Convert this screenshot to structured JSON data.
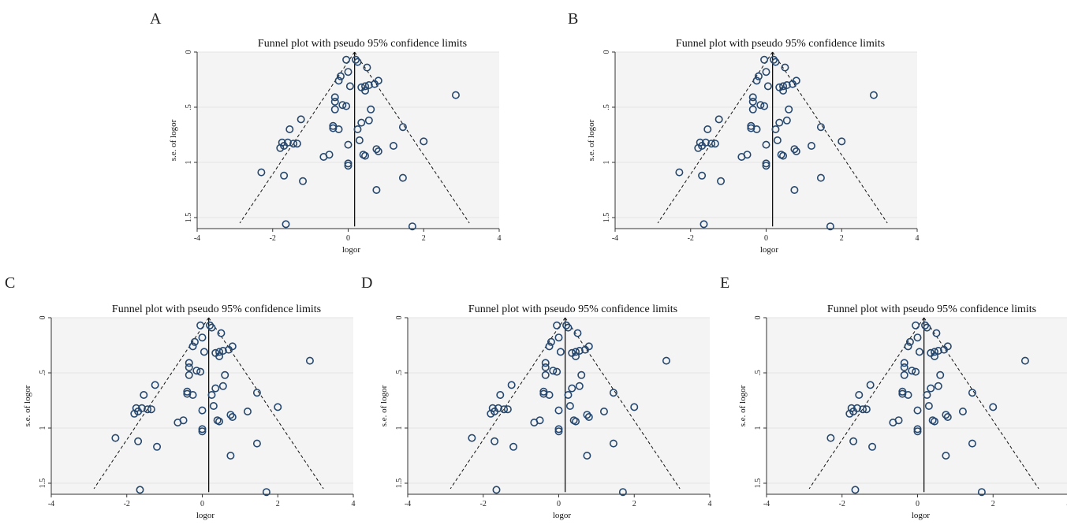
{
  "panels": [
    {
      "letter": "A"
    },
    {
      "letter": "B"
    },
    {
      "letter": "C"
    },
    {
      "letter": "D"
    },
    {
      "letter": "E"
    }
  ],
  "colors": {
    "plot_background": "#f4f4f4",
    "marker_stroke": "#25476e",
    "line": "#111111",
    "gridline": "#e4e4e4"
  },
  "chart_data": [
    {
      "type": "scatter",
      "title": "Funnel plot with pseudo 95% confidence limits",
      "xlabel": "logor",
      "ylabel": "s.e. of logor",
      "xlim": [
        -4,
        4
      ],
      "ylim": [
        1.6,
        0
      ],
      "y_inverted": true,
      "xticks": [
        "-4",
        "-2",
        "0",
        "2",
        "4"
      ],
      "yticks": [
        "0",
        ".5",
        "1",
        "1.5"
      ],
      "grid": true,
      "pooled_estimate": 0.17,
      "pseudo_ci_limits": [
        [
          0.17,
          0
        ],
        [
          -2.87,
          1.55
        ],
        [
          3.21,
          1.55
        ]
      ],
      "points": [
        [
          -0.05,
          0.07
        ],
        [
          0.2,
          0.07
        ],
        [
          0.25,
          0.09
        ],
        [
          0.5,
          0.14
        ],
        [
          0.0,
          0.18
        ],
        [
          -0.2,
          0.22
        ],
        [
          -0.25,
          0.26
        ],
        [
          0.8,
          0.26
        ],
        [
          0.7,
          0.29
        ],
        [
          0.55,
          0.3
        ],
        [
          0.45,
          0.31
        ],
        [
          0.05,
          0.31
        ],
        [
          0.35,
          0.32
        ],
        [
          0.45,
          0.35
        ],
        [
          2.85,
          0.39
        ],
        [
          -0.35,
          0.41
        ],
        [
          -0.35,
          0.45
        ],
        [
          -0.15,
          0.48
        ],
        [
          -0.05,
          0.49
        ],
        [
          -0.35,
          0.52
        ],
        [
          0.6,
          0.52
        ],
        [
          -1.25,
          0.61
        ],
        [
          0.55,
          0.62
        ],
        [
          0.35,
          0.64
        ],
        [
          -0.4,
          0.67
        ],
        [
          -0.4,
          0.69
        ],
        [
          -1.55,
          0.7
        ],
        [
          0.25,
          0.7
        ],
        [
          -0.25,
          0.7
        ],
        [
          1.45,
          0.68
        ],
        [
          0.3,
          0.8
        ],
        [
          2.0,
          0.81
        ],
        [
          -1.75,
          0.82
        ],
        [
          -1.6,
          0.82
        ],
        [
          -1.45,
          0.83
        ],
        [
          -1.35,
          0.83
        ],
        [
          -1.7,
          0.85
        ],
        [
          -1.8,
          0.87
        ],
        [
          1.2,
          0.85
        ],
        [
          0.0,
          0.84
        ],
        [
          0.75,
          0.88
        ],
        [
          0.8,
          0.9
        ],
        [
          -0.5,
          0.93
        ],
        [
          0.4,
          0.93
        ],
        [
          0.45,
          0.94
        ],
        [
          -0.65,
          0.95
        ],
        [
          0.0,
          1.01
        ],
        [
          0.0,
          1.03
        ],
        [
          -2.3,
          1.09
        ],
        [
          -1.7,
          1.12
        ],
        [
          1.45,
          1.14
        ],
        [
          -1.2,
          1.17
        ],
        [
          0.75,
          1.25
        ],
        [
          -1.65,
          1.56
        ],
        [
          1.7,
          1.58
        ]
      ]
    },
    {
      "type": "scatter",
      "title": "Funnel plot with pseudo 95% confidence limits",
      "xlabel": "logor",
      "ylabel": "s.e. of logor",
      "xlim": [
        -4,
        4
      ],
      "ylim": [
        1.6,
        0
      ],
      "y_inverted": true,
      "xticks": [
        "-4",
        "-2",
        "0",
        "2",
        "4"
      ],
      "yticks": [
        "0",
        ".5",
        "1",
        "1.5"
      ],
      "grid": true,
      "pooled_estimate": 0.17,
      "pseudo_ci_limits": [
        [
          0.17,
          0
        ],
        [
          -2.87,
          1.55
        ],
        [
          3.21,
          1.55
        ]
      ],
      "points": [
        [
          -0.05,
          0.07
        ],
        [
          0.2,
          0.07
        ],
        [
          0.25,
          0.09
        ],
        [
          0.5,
          0.14
        ],
        [
          0.0,
          0.18
        ],
        [
          -0.2,
          0.22
        ],
        [
          -0.25,
          0.26
        ],
        [
          0.8,
          0.26
        ],
        [
          0.7,
          0.29
        ],
        [
          0.55,
          0.3
        ],
        [
          0.45,
          0.31
        ],
        [
          0.05,
          0.31
        ],
        [
          0.35,
          0.32
        ],
        [
          0.45,
          0.35
        ],
        [
          2.85,
          0.39
        ],
        [
          -0.35,
          0.41
        ],
        [
          -0.35,
          0.45
        ],
        [
          -0.15,
          0.48
        ],
        [
          -0.05,
          0.49
        ],
        [
          -0.35,
          0.52
        ],
        [
          0.6,
          0.52
        ],
        [
          -1.25,
          0.61
        ],
        [
          0.55,
          0.62
        ],
        [
          0.35,
          0.64
        ],
        [
          -0.4,
          0.67
        ],
        [
          -0.4,
          0.69
        ],
        [
          -1.55,
          0.7
        ],
        [
          0.25,
          0.7
        ],
        [
          -0.25,
          0.7
        ],
        [
          1.45,
          0.68
        ],
        [
          0.3,
          0.8
        ],
        [
          2.0,
          0.81
        ],
        [
          -1.75,
          0.82
        ],
        [
          -1.6,
          0.82
        ],
        [
          -1.45,
          0.83
        ],
        [
          -1.35,
          0.83
        ],
        [
          -1.7,
          0.85
        ],
        [
          -1.8,
          0.87
        ],
        [
          1.2,
          0.85
        ],
        [
          0.0,
          0.84
        ],
        [
          0.75,
          0.88
        ],
        [
          0.8,
          0.9
        ],
        [
          -0.5,
          0.93
        ],
        [
          0.4,
          0.93
        ],
        [
          0.45,
          0.94
        ],
        [
          -0.65,
          0.95
        ],
        [
          0.0,
          1.01
        ],
        [
          0.0,
          1.03
        ],
        [
          -2.3,
          1.09
        ],
        [
          -1.7,
          1.12
        ],
        [
          1.45,
          1.14
        ],
        [
          -1.2,
          1.17
        ],
        [
          0.75,
          1.25
        ],
        [
          -1.65,
          1.56
        ],
        [
          1.7,
          1.58
        ]
      ]
    },
    {
      "type": "scatter",
      "title": "Funnel plot with pseudo 95% confidence limits",
      "xlabel": "logor",
      "ylabel": "s.e. of logor",
      "xlim": [
        -4,
        4
      ],
      "ylim": [
        1.6,
        0
      ],
      "y_inverted": true,
      "xticks": [
        "-4",
        "-2",
        "0",
        "2",
        "4"
      ],
      "yticks": [
        "0",
        ".5",
        "1",
        "1.5"
      ],
      "grid": true,
      "pooled_estimate": 0.17,
      "pseudo_ci_limits": [
        [
          0.17,
          0
        ],
        [
          -2.87,
          1.55
        ],
        [
          3.21,
          1.55
        ]
      ],
      "points": [
        [
          -0.05,
          0.07
        ],
        [
          0.2,
          0.07
        ],
        [
          0.25,
          0.09
        ],
        [
          0.5,
          0.14
        ],
        [
          0.0,
          0.18
        ],
        [
          -0.2,
          0.22
        ],
        [
          -0.25,
          0.26
        ],
        [
          0.8,
          0.26
        ],
        [
          0.7,
          0.29
        ],
        [
          0.55,
          0.3
        ],
        [
          0.45,
          0.31
        ],
        [
          0.05,
          0.31
        ],
        [
          0.35,
          0.32
        ],
        [
          0.45,
          0.35
        ],
        [
          2.85,
          0.39
        ],
        [
          -0.35,
          0.41
        ],
        [
          -0.35,
          0.45
        ],
        [
          -0.15,
          0.48
        ],
        [
          -0.05,
          0.49
        ],
        [
          -0.35,
          0.52
        ],
        [
          0.6,
          0.52
        ],
        [
          -1.25,
          0.61
        ],
        [
          0.55,
          0.62
        ],
        [
          0.35,
          0.64
        ],
        [
          -0.4,
          0.67
        ],
        [
          -0.4,
          0.69
        ],
        [
          -1.55,
          0.7
        ],
        [
          0.25,
          0.7
        ],
        [
          -0.25,
          0.7
        ],
        [
          1.45,
          0.68
        ],
        [
          0.3,
          0.8
        ],
        [
          2.0,
          0.81
        ],
        [
          -1.75,
          0.82
        ],
        [
          -1.6,
          0.82
        ],
        [
          -1.45,
          0.83
        ],
        [
          -1.35,
          0.83
        ],
        [
          -1.7,
          0.85
        ],
        [
          -1.8,
          0.87
        ],
        [
          1.2,
          0.85
        ],
        [
          0.0,
          0.84
        ],
        [
          0.75,
          0.88
        ],
        [
          0.8,
          0.9
        ],
        [
          -0.5,
          0.93
        ],
        [
          0.4,
          0.93
        ],
        [
          0.45,
          0.94
        ],
        [
          -0.65,
          0.95
        ],
        [
          0.0,
          1.01
        ],
        [
          0.0,
          1.03
        ],
        [
          -2.3,
          1.09
        ],
        [
          -1.7,
          1.12
        ],
        [
          1.45,
          1.14
        ],
        [
          -1.2,
          1.17
        ],
        [
          0.75,
          1.25
        ],
        [
          -1.65,
          1.56
        ],
        [
          1.7,
          1.58
        ]
      ]
    },
    {
      "type": "scatter",
      "title": "Funnel plot with pseudo 95% confidence limits",
      "xlabel": "logor",
      "ylabel": "s.e. of logor",
      "xlim": [
        -4,
        4
      ],
      "ylim": [
        1.6,
        0
      ],
      "y_inverted": true,
      "xticks": [
        "-4",
        "-2",
        "0",
        "2",
        "4"
      ],
      "yticks": [
        "0",
        ".5",
        "1",
        "1.5"
      ],
      "grid": true,
      "pooled_estimate": 0.17,
      "pseudo_ci_limits": [
        [
          0.17,
          0
        ],
        [
          -2.87,
          1.55
        ],
        [
          3.21,
          1.55
        ]
      ],
      "points": [
        [
          -0.05,
          0.07
        ],
        [
          0.2,
          0.07
        ],
        [
          0.25,
          0.09
        ],
        [
          0.5,
          0.14
        ],
        [
          0.0,
          0.18
        ],
        [
          -0.2,
          0.22
        ],
        [
          -0.25,
          0.26
        ],
        [
          0.8,
          0.26
        ],
        [
          0.7,
          0.29
        ],
        [
          0.55,
          0.3
        ],
        [
          0.45,
          0.31
        ],
        [
          0.05,
          0.31
        ],
        [
          0.35,
          0.32
        ],
        [
          0.45,
          0.35
        ],
        [
          2.85,
          0.39
        ],
        [
          -0.35,
          0.41
        ],
        [
          -0.35,
          0.45
        ],
        [
          -0.15,
          0.48
        ],
        [
          -0.05,
          0.49
        ],
        [
          -0.35,
          0.52
        ],
        [
          0.6,
          0.52
        ],
        [
          -1.25,
          0.61
        ],
        [
          0.55,
          0.62
        ],
        [
          0.35,
          0.64
        ],
        [
          -0.4,
          0.67
        ],
        [
          -0.4,
          0.69
        ],
        [
          -1.55,
          0.7
        ],
        [
          0.25,
          0.7
        ],
        [
          -0.25,
          0.7
        ],
        [
          1.45,
          0.68
        ],
        [
          0.3,
          0.8
        ],
        [
          2.0,
          0.81
        ],
        [
          -1.75,
          0.82
        ],
        [
          -1.6,
          0.82
        ],
        [
          -1.45,
          0.83
        ],
        [
          -1.35,
          0.83
        ],
        [
          -1.7,
          0.85
        ],
        [
          -1.8,
          0.87
        ],
        [
          1.2,
          0.85
        ],
        [
          0.0,
          0.84
        ],
        [
          0.75,
          0.88
        ],
        [
          0.8,
          0.9
        ],
        [
          -0.5,
          0.93
        ],
        [
          0.4,
          0.93
        ],
        [
          0.45,
          0.94
        ],
        [
          -0.65,
          0.95
        ],
        [
          0.0,
          1.01
        ],
        [
          0.0,
          1.03
        ],
        [
          -2.3,
          1.09
        ],
        [
          -1.7,
          1.12
        ],
        [
          1.45,
          1.14
        ],
        [
          -1.2,
          1.17
        ],
        [
          0.75,
          1.25
        ],
        [
          -1.65,
          1.56
        ],
        [
          1.7,
          1.58
        ]
      ]
    },
    {
      "type": "scatter",
      "title": "Funnel plot with pseudo 95% confidence limits",
      "xlabel": "logor",
      "ylabel": "s.e. of logor",
      "xlim": [
        -4,
        4
      ],
      "ylim": [
        1.6,
        0
      ],
      "y_inverted": true,
      "xticks": [
        "-4",
        "-2",
        "0",
        "2",
        "4"
      ],
      "yticks": [
        "0",
        ".5",
        "1",
        "1.5"
      ],
      "grid": true,
      "pooled_estimate": 0.17,
      "pseudo_ci_limits": [
        [
          0.17,
          0
        ],
        [
          -2.87,
          1.55
        ],
        [
          3.21,
          1.55
        ]
      ],
      "points": [
        [
          -0.05,
          0.07
        ],
        [
          0.2,
          0.07
        ],
        [
          0.25,
          0.09
        ],
        [
          0.5,
          0.14
        ],
        [
          0.0,
          0.18
        ],
        [
          -0.2,
          0.22
        ],
        [
          -0.25,
          0.26
        ],
        [
          0.8,
          0.26
        ],
        [
          0.7,
          0.29
        ],
        [
          0.55,
          0.3
        ],
        [
          0.45,
          0.31
        ],
        [
          0.05,
          0.31
        ],
        [
          0.35,
          0.32
        ],
        [
          0.45,
          0.35
        ],
        [
          2.85,
          0.39
        ],
        [
          -0.35,
          0.41
        ],
        [
          -0.35,
          0.45
        ],
        [
          -0.15,
          0.48
        ],
        [
          -0.05,
          0.49
        ],
        [
          -0.35,
          0.52
        ],
        [
          0.6,
          0.52
        ],
        [
          -1.25,
          0.61
        ],
        [
          0.55,
          0.62
        ],
        [
          0.35,
          0.64
        ],
        [
          -0.4,
          0.67
        ],
        [
          -0.4,
          0.69
        ],
        [
          -1.55,
          0.7
        ],
        [
          0.25,
          0.7
        ],
        [
          -0.25,
          0.7
        ],
        [
          1.45,
          0.68
        ],
        [
          0.3,
          0.8
        ],
        [
          2.0,
          0.81
        ],
        [
          -1.75,
          0.82
        ],
        [
          -1.6,
          0.82
        ],
        [
          -1.45,
          0.83
        ],
        [
          -1.35,
          0.83
        ],
        [
          -1.7,
          0.85
        ],
        [
          -1.8,
          0.87
        ],
        [
          1.2,
          0.85
        ],
        [
          0.0,
          0.84
        ],
        [
          0.75,
          0.88
        ],
        [
          0.8,
          0.9
        ],
        [
          -0.5,
          0.93
        ],
        [
          0.4,
          0.93
        ],
        [
          0.45,
          0.94
        ],
        [
          -0.65,
          0.95
        ],
        [
          0.0,
          1.01
        ],
        [
          0.0,
          1.03
        ],
        [
          -2.3,
          1.09
        ],
        [
          -1.7,
          1.12
        ],
        [
          1.45,
          1.14
        ],
        [
          -1.2,
          1.17
        ],
        [
          0.75,
          1.25
        ],
        [
          -1.65,
          1.56
        ],
        [
          1.7,
          1.58
        ]
      ]
    }
  ]
}
